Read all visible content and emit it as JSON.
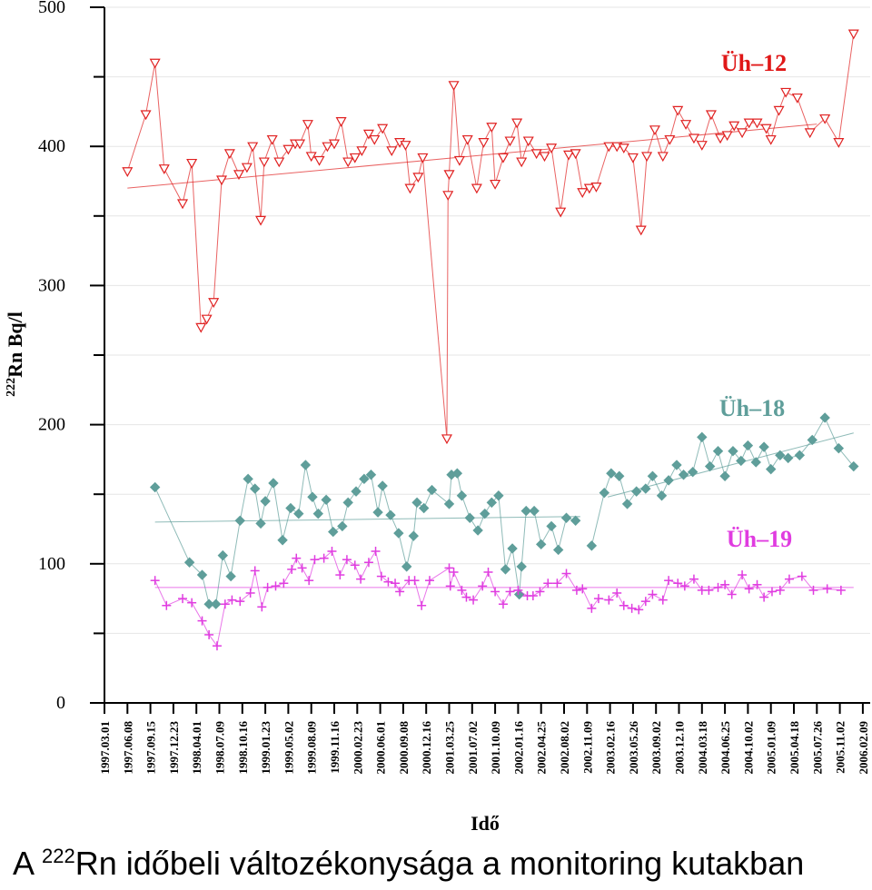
{
  "caption": {
    "prefix": "A ",
    "sup": "222",
    "suffix": "Rn időbeli változékonysága a monitoring kutakban"
  },
  "chart_data": {
    "type": "scatter",
    "xlabel": "Idő",
    "ylabel_sup": "222",
    "ylabel": "Rn  Bq/l",
    "ylim": [
      0,
      500
    ],
    "yticks": [
      0,
      100,
      200,
      300,
      400,
      500
    ],
    "grid": true,
    "x_ticks": [
      "1997.03.01",
      "1997.06.08",
      "1997.09.15",
      "1997.12.23",
      "1998.04.01",
      "1998.07.09",
      "1998.10.16",
      "1999.01.23",
      "1999.05.02",
      "1999.08.09",
      "1999.11.16",
      "2000.02.23",
      "2000.06.01",
      "2000.09.08",
      "2000.12.16",
      "2001.03.25",
      "2001.07.02",
      "2001.10.09",
      "2002.01.16",
      "2002.04.25",
      "2002.08.02",
      "2002.11.09",
      "2003.02.16",
      "2003.05.26",
      "2003.09.02",
      "2003.12.10",
      "2004.03.18",
      "2004.06.25",
      "2004.10.02",
      "2005.01.09",
      "2005.04.18",
      "2005.07.26",
      "2005.11.02",
      "2006.02.09"
    ],
    "x_unit": "tick index",
    "series": [
      {
        "name": "Üh–12",
        "color": "#e02020",
        "marker": "triangle-down",
        "trend": [
          [
            1.0,
            370
          ],
          [
            31.0,
            416
          ]
        ],
        "points": [
          [
            1.0,
            382
          ],
          [
            1.8,
            423
          ],
          [
            2.2,
            460
          ],
          [
            2.6,
            384
          ],
          [
            3.4,
            359
          ],
          [
            3.8,
            388
          ],
          [
            4.2,
            270
          ],
          [
            4.45,
            276
          ],
          [
            4.75,
            288
          ],
          [
            5.1,
            376
          ],
          [
            5.45,
            395
          ],
          [
            5.85,
            380
          ],
          [
            6.2,
            385
          ],
          [
            6.45,
            400
          ],
          [
            6.8,
            347
          ],
          [
            6.95,
            389
          ],
          [
            7.3,
            405
          ],
          [
            7.6,
            389
          ],
          [
            8.0,
            398
          ],
          [
            8.3,
            402
          ],
          [
            8.5,
            402
          ],
          [
            8.85,
            416
          ],
          [
            9.0,
            393
          ],
          [
            9.35,
            390
          ],
          [
            9.7,
            400
          ],
          [
            10.0,
            402
          ],
          [
            10.3,
            418
          ],
          [
            10.6,
            389
          ],
          [
            10.9,
            392
          ],
          [
            11.2,
            397
          ],
          [
            11.5,
            409
          ],
          [
            11.75,
            405
          ],
          [
            12.1,
            413
          ],
          [
            12.5,
            397
          ],
          [
            12.85,
            403
          ],
          [
            13.1,
            401
          ],
          [
            13.3,
            370
          ],
          [
            13.65,
            378
          ],
          [
            13.85,
            392
          ],
          [
            14.95,
            365
          ],
          [
            15.0,
            380
          ],
          [
            14.9,
            190
          ],
          [
            15.2,
            444
          ],
          [
            15.45,
            390
          ],
          [
            15.8,
            405
          ],
          [
            16.2,
            370
          ],
          [
            16.5,
            403
          ],
          [
            16.85,
            414
          ],
          [
            17.0,
            373
          ],
          [
            17.35,
            392
          ],
          [
            17.65,
            404
          ],
          [
            17.95,
            417
          ],
          [
            18.15,
            389
          ],
          [
            18.45,
            404
          ],
          [
            18.8,
            395
          ],
          [
            19.15,
            393
          ],
          [
            19.45,
            399
          ],
          [
            19.85,
            353
          ],
          [
            20.2,
            394
          ],
          [
            20.5,
            395
          ],
          [
            20.8,
            367
          ],
          [
            21.1,
            370
          ],
          [
            21.4,
            371
          ],
          [
            21.95,
            400
          ],
          [
            22.3,
            400
          ],
          [
            22.6,
            399
          ],
          [
            23.0,
            392
          ],
          [
            23.35,
            340
          ],
          [
            23.6,
            393
          ],
          [
            23.95,
            412
          ],
          [
            24.3,
            393
          ],
          [
            24.6,
            405
          ],
          [
            24.95,
            426
          ],
          [
            25.3,
            416
          ],
          [
            25.65,
            406
          ],
          [
            26.0,
            401
          ],
          [
            26.4,
            423
          ],
          [
            26.8,
            406
          ],
          [
            27.1,
            408
          ],
          [
            27.4,
            415
          ],
          [
            27.75,
            410
          ],
          [
            28.05,
            417
          ],
          [
            28.4,
            417
          ],
          [
            28.8,
            413
          ],
          [
            29.0,
            405
          ],
          [
            29.35,
            426
          ],
          [
            29.65,
            439
          ],
          [
            30.15,
            435
          ],
          [
            30.7,
            410
          ],
          [
            31.35,
            420
          ],
          [
            31.95,
            403
          ],
          [
            32.6,
            481
          ]
        ]
      },
      {
        "name": "Üh–18",
        "color": "#5f9e9a",
        "marker": "diamond",
        "trend_segments": [
          [
            [
              2.2,
              130
            ],
            [
              20.7,
              134
            ]
          ],
          [
            [
              21.9,
              148
            ],
            [
              32.6,
              194
            ]
          ]
        ],
        "segments": [
          [
            [
              2.2,
              155
            ],
            [
              3.7,
              101
            ],
            [
              4.25,
              92
            ],
            [
              4.55,
              71
            ],
            [
              4.85,
              71
            ],
            [
              5.15,
              106
            ],
            [
              5.5,
              91
            ],
            [
              5.9,
              131
            ],
            [
              6.25,
              161
            ],
            [
              6.55,
              154
            ],
            [
              6.8,
              129
            ],
            [
              7.0,
              145
            ],
            [
              7.35,
              158
            ],
            [
              7.75,
              117
            ],
            [
              8.1,
              140
            ],
            [
              8.45,
              136
            ],
            [
              8.75,
              171
            ],
            [
              9.05,
              148
            ],
            [
              9.3,
              136
            ],
            [
              9.65,
              146
            ],
            [
              9.95,
              123
            ],
            [
              10.35,
              127
            ],
            [
              10.6,
              144
            ],
            [
              10.95,
              152
            ],
            [
              11.3,
              161
            ],
            [
              11.6,
              164
            ],
            [
              11.9,
              137
            ],
            [
              12.1,
              156
            ],
            [
              12.45,
              135
            ],
            [
              12.8,
              122
            ],
            [
              13.15,
              98
            ],
            [
              13.45,
              120
            ],
            [
              13.6,
              144
            ],
            [
              13.9,
              140
            ],
            [
              14.25,
              153
            ],
            [
              15.0,
              143
            ],
            [
              15.1,
              164
            ],
            [
              15.35,
              165
            ],
            [
              15.55,
              149
            ],
            [
              15.9,
              133
            ],
            [
              16.25,
              124
            ],
            [
              16.55,
              136
            ],
            [
              16.85,
              144
            ],
            [
              17.15,
              149
            ],
            [
              17.45,
              96
            ],
            [
              17.75,
              111
            ],
            [
              18.05,
              78
            ],
            [
              18.15,
              98
            ],
            [
              18.35,
              138
            ],
            [
              18.7,
              138
            ],
            [
              19.0,
              114
            ],
            [
              19.45,
              127
            ],
            [
              19.75,
              110
            ],
            [
              20.1,
              133
            ],
            [
              20.5,
              131
            ]
          ],
          [
            [
              21.2,
              113
            ],
            [
              21.75,
              151
            ],
            [
              22.05,
              165
            ],
            [
              22.4,
              163
            ],
            [
              22.75,
              143
            ],
            [
              23.15,
              152
            ],
            [
              23.55,
              154
            ],
            [
              23.85,
              163
            ],
            [
              24.25,
              149
            ],
            [
              24.55,
              160
            ],
            [
              24.9,
              171
            ],
            [
              25.2,
              164
            ],
            [
              25.6,
              166
            ],
            [
              26.0,
              191
            ],
            [
              26.35,
              170
            ],
            [
              26.7,
              181
            ],
            [
              27.0,
              163
            ],
            [
              27.35,
              181
            ],
            [
              27.7,
              174
            ],
            [
              28.0,
              185
            ],
            [
              28.35,
              173
            ],
            [
              28.7,
              184
            ],
            [
              29.0,
              168
            ],
            [
              29.4,
              178
            ],
            [
              29.75,
              176
            ],
            [
              30.25,
              178
            ],
            [
              30.8,
              189
            ],
            [
              31.35,
              205
            ],
            [
              31.95,
              183
            ],
            [
              32.6,
              170
            ]
          ]
        ]
      },
      {
        "name": "Üh–19",
        "color": "#e03ce0",
        "marker": "plus",
        "trend": [
          [
            2.2,
            83
          ],
          [
            32.6,
            83
          ]
        ],
        "points": [
          [
            2.2,
            88
          ],
          [
            2.7,
            70
          ],
          [
            3.4,
            75
          ],
          [
            3.8,
            72
          ],
          [
            4.25,
            59
          ],
          [
            4.55,
            49
          ],
          [
            4.9,
            41
          ],
          [
            5.25,
            71
          ],
          [
            5.55,
            74
          ],
          [
            5.9,
            73
          ],
          [
            6.35,
            79
          ],
          [
            6.55,
            95
          ],
          [
            6.85,
            69
          ],
          [
            7.1,
            83
          ],
          [
            7.45,
            84
          ],
          [
            7.8,
            86
          ],
          [
            8.15,
            96
          ],
          [
            8.35,
            104
          ],
          [
            8.6,
            97
          ],
          [
            8.9,
            88
          ],
          [
            9.15,
            103
          ],
          [
            9.55,
            104
          ],
          [
            9.9,
            109
          ],
          [
            10.25,
            92
          ],
          [
            10.55,
            103
          ],
          [
            10.9,
            99
          ],
          [
            11.15,
            89
          ],
          [
            11.5,
            101
          ],
          [
            11.8,
            109
          ],
          [
            12.05,
            91
          ],
          [
            12.35,
            87
          ],
          [
            12.65,
            86
          ],
          [
            12.85,
            80
          ],
          [
            13.25,
            88
          ],
          [
            13.5,
            88
          ],
          [
            13.8,
            70
          ],
          [
            14.15,
            88
          ],
          [
            15.0,
            97
          ],
          [
            15.2,
            94
          ],
          [
            15.05,
            84
          ],
          [
            15.55,
            81
          ],
          [
            15.75,
            76
          ],
          [
            16.05,
            74
          ],
          [
            16.45,
            84
          ],
          [
            16.7,
            94
          ],
          [
            17.0,
            80
          ],
          [
            17.35,
            71
          ],
          [
            17.65,
            80
          ],
          [
            18.0,
            81
          ],
          [
            18.4,
            77
          ],
          [
            18.65,
            77
          ],
          [
            18.95,
            80
          ],
          [
            19.3,
            86
          ],
          [
            19.7,
            86
          ],
          [
            20.1,
            93
          ],
          [
            20.55,
            81
          ],
          [
            20.8,
            82
          ],
          [
            21.2,
            68
          ],
          [
            21.5,
            75
          ],
          [
            21.95,
            74
          ],
          [
            22.3,
            79
          ],
          [
            22.6,
            70
          ],
          [
            22.95,
            68
          ],
          [
            23.25,
            67
          ],
          [
            23.55,
            73
          ],
          [
            23.85,
            78
          ],
          [
            24.3,
            74
          ],
          [
            24.55,
            88
          ],
          [
            24.95,
            86
          ],
          [
            25.25,
            84
          ],
          [
            25.65,
            89
          ],
          [
            26.0,
            81
          ],
          [
            26.3,
            81
          ],
          [
            26.7,
            83
          ],
          [
            27.0,
            85
          ],
          [
            27.3,
            78
          ],
          [
            27.75,
            92
          ],
          [
            28.05,
            82
          ],
          [
            28.4,
            85
          ],
          [
            28.7,
            76
          ],
          [
            29.05,
            80
          ],
          [
            29.4,
            81
          ],
          [
            29.8,
            89
          ],
          [
            30.35,
            91
          ],
          [
            30.85,
            81
          ],
          [
            31.45,
            82
          ],
          [
            32.05,
            81
          ]
        ]
      }
    ]
  }
}
